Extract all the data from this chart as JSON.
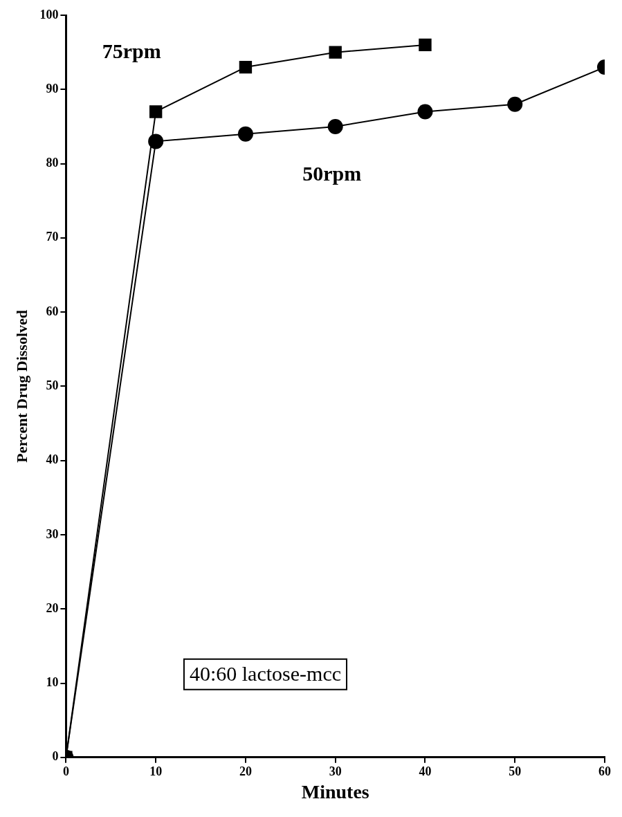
{
  "chart_data": {
    "type": "line",
    "xlabel": "Minutes",
    "ylabel": "Percent Drug Dissolved",
    "xlim": [
      0,
      60
    ],
    "xticks": [
      0,
      10,
      20,
      30,
      40,
      50,
      60
    ],
    "ylim": [
      0,
      100
    ],
    "yticks": [
      0,
      10,
      20,
      30,
      40,
      50,
      60,
      70,
      80,
      90,
      100
    ],
    "grid": false,
    "legend": false,
    "line_style": "solid",
    "annotations": [
      "40:60 lactose-mcc"
    ],
    "series": [
      {
        "name": "50rpm",
        "color": "#000000",
        "marker": "circle",
        "x": [
          0,
          10,
          20,
          30,
          40,
          50,
          60
        ],
        "values": [
          0,
          83,
          84,
          85,
          87,
          88,
          93
        ]
      },
      {
        "name": "75rpm",
        "color": "#000000",
        "marker": "square",
        "x": [
          0,
          10,
          20,
          30,
          40
        ],
        "values": [
          0,
          87,
          93,
          95,
          96
        ]
      }
    ]
  }
}
